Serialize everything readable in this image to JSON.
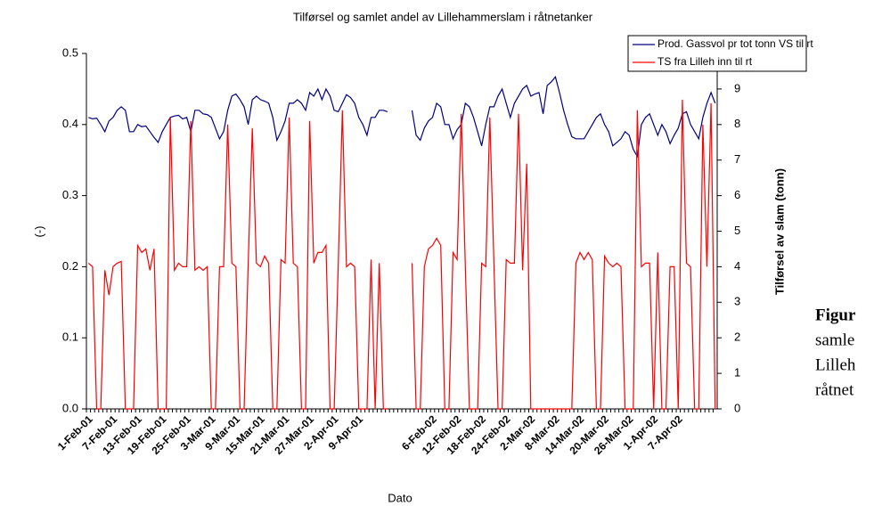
{
  "chart_data": {
    "type": "line",
    "title": "Tilførsel og samlet andel av Lillehammerslam i råtnetanker",
    "x_label": "Dato",
    "y_label": "(-)",
    "y2_label": "Tilførsel av slam (tonn)",
    "categories": [
      "1-Feb-01",
      null,
      null,
      null,
      null,
      null,
      "7-Feb-01",
      null,
      null,
      null,
      null,
      null,
      "13-Feb-01",
      null,
      null,
      null,
      null,
      null,
      "19-Feb-01",
      null,
      null,
      null,
      null,
      null,
      "25-Feb-01",
      null,
      null,
      null,
      null,
      null,
      "3-Mar-01",
      null,
      null,
      null,
      null,
      null,
      "9-Mar-01",
      null,
      null,
      null,
      null,
      null,
      "15-Mar-01",
      null,
      null,
      null,
      null,
      null,
      "21-Mar-01",
      null,
      null,
      null,
      null,
      null,
      "27-Mar-01",
      null,
      null,
      null,
      null,
      null,
      "2-Apr-01",
      null,
      null,
      null,
      null,
      null,
      "9-Apr-01",
      null,
      null,
      null,
      null,
      null,
      null,
      null,
      null,
      null,
      null,
      null,
      null,
      null,
      null,
      null,
      null,
      null,
      "6-Feb-02",
      null,
      null,
      null,
      null,
      null,
      "12-Feb-02",
      null,
      null,
      null,
      null,
      null,
      "18-Feb-02",
      null,
      null,
      null,
      null,
      null,
      "24-Feb-02",
      null,
      null,
      null,
      null,
      null,
      "2-Mar-02",
      null,
      null,
      null,
      null,
      null,
      "8-Mar-02",
      null,
      null,
      null,
      null,
      null,
      "14-Mar-02",
      null,
      null,
      null,
      null,
      null,
      "20-Mar-02",
      null,
      null,
      null,
      null,
      null,
      "26-Mar-02",
      null,
      null,
      null,
      null,
      null,
      "1-Apr-02",
      null,
      null,
      null,
      null,
      null,
      "7-Apr-02",
      null,
      null,
      null,
      null,
      null,
      null,
      null,
      null,
      null
    ],
    "series": [
      {
        "name": "Prod. Gassvol pr tot tonn VS til rt",
        "color": "#000080",
        "axis": "y",
        "values": [
          0.41,
          0.408,
          0.409,
          0.4,
          0.39,
          0.405,
          0.41,
          0.42,
          0.425,
          0.42,
          0.39,
          0.39,
          0.4,
          0.397,
          0.398,
          0.39,
          0.382,
          0.375,
          0.39,
          0.4,
          0.41,
          0.412,
          0.413,
          0.408,
          0.41,
          0.39,
          0.42,
          0.42,
          0.415,
          0.414,
          0.41,
          0.395,
          0.38,
          0.39,
          0.42,
          0.44,
          0.443,
          0.435,
          0.425,
          0.4,
          0.435,
          0.44,
          0.435,
          0.433,
          0.43,
          0.41,
          0.378,
          0.39,
          0.405,
          0.43,
          0.43,
          0.435,
          0.43,
          0.42,
          0.445,
          0.44,
          0.45,
          0.435,
          0.45,
          0.44,
          0.42,
          0.418,
          0.43,
          0.442,
          0.438,
          0.43,
          0.41,
          0.4,
          0.385,
          0.41,
          0.41,
          0.42,
          0.42,
          0.418,
          null,
          null,
          null,
          null,
          null,
          0.42,
          0.385,
          0.378,
          0.395,
          0.405,
          0.41,
          0.43,
          0.425,
          0.4,
          0.4,
          0.38,
          0.393,
          0.4,
          0.43,
          0.425,
          0.41,
          0.39,
          0.37,
          0.4,
          0.425,
          0.425,
          0.44,
          0.45,
          0.43,
          0.41,
          0.43,
          0.44,
          0.45,
          0.455,
          0.44,
          0.443,
          0.445,
          0.415,
          0.455,
          0.46,
          0.467,
          0.445,
          0.42,
          0.4,
          0.383,
          0.38,
          0.38,
          0.38,
          0.39,
          0.4,
          0.41,
          0.415,
          0.4,
          0.39,
          0.37,
          0.375,
          0.38,
          0.39,
          0.385,
          0.365,
          0.355,
          0.4,
          0.41,
          0.415,
          0.4,
          0.385,
          0.4,
          0.39,
          0.373,
          0.385,
          0.395,
          0.415,
          0.418,
          0.4,
          0.39,
          0.38,
          0.41,
          0.43,
          0.445,
          0.43
        ]
      },
      {
        "name": "TS fra Lilleh inn til rt",
        "color": "#ff0000",
        "axis": "y2",
        "values": [
          4.1,
          4.0,
          0,
          0,
          3.9,
          3.2,
          4.0,
          4.1,
          4.15,
          0,
          0,
          0,
          4.6,
          4.4,
          4.5,
          3.9,
          4.5,
          0,
          0,
          0,
          8.2,
          3.9,
          4.1,
          4.0,
          4.0,
          8.1,
          3.9,
          4.0,
          3.9,
          4.0,
          0,
          0,
          4.0,
          4.0,
          8.0,
          4.1,
          4.0,
          0,
          0,
          4.1,
          7.9,
          4.1,
          4.0,
          4.3,
          4.1,
          0,
          0,
          4.2,
          4.1,
          8.2,
          4.1,
          4.0,
          0,
          0,
          8.1,
          4.1,
          4.4,
          4.4,
          4.6,
          0,
          0,
          4.1,
          8.4,
          4.0,
          4.1,
          4.0,
          0,
          0,
          0,
          4.2,
          0,
          4.1,
          0,
          0,
          null,
          null,
          null,
          null,
          null,
          4.1,
          0,
          0,
          4.0,
          4.5,
          4.6,
          4.8,
          4.6,
          0,
          0,
          4.4,
          4.2,
          8.3,
          4.0,
          0,
          0,
          0,
          4.1,
          4.0,
          8.2,
          4.1,
          0,
          0,
          4.2,
          4.1,
          4.1,
          8.3,
          3.9,
          6.9,
          0,
          0,
          0,
          0,
          0,
          0,
          0,
          0,
          0,
          0,
          0,
          4.1,
          4.4,
          4.2,
          4.4,
          4.2,
          0,
          0,
          4.3,
          4.1,
          4.0,
          4.1,
          4.0,
          0,
          0,
          0,
          8.4,
          4.0,
          4.1,
          4.1,
          0,
          4.4,
          0,
          0,
          4.0,
          4.0,
          0,
          8.7,
          4.1,
          4.0,
          0,
          0,
          8.0,
          4.0,
          8.6,
          0
        ]
      }
    ],
    "ylim": [
      0,
      0.5
    ],
    "yticks": [
      {
        "value": 0,
        "label": "0.0"
      },
      0.1,
      0.2,
      0.3,
      0.4,
      0.5
    ],
    "y2lim": [
      0,
      10
    ],
    "y2ticks": [
      0,
      1,
      2,
      3,
      4,
      5,
      6,
      7,
      8,
      9
    ],
    "grid": false,
    "legend": "top-right"
  },
  "caption": {
    "lines": [
      "Figur",
      "samle",
      "Lilleh",
      "råtnet"
    ]
  }
}
